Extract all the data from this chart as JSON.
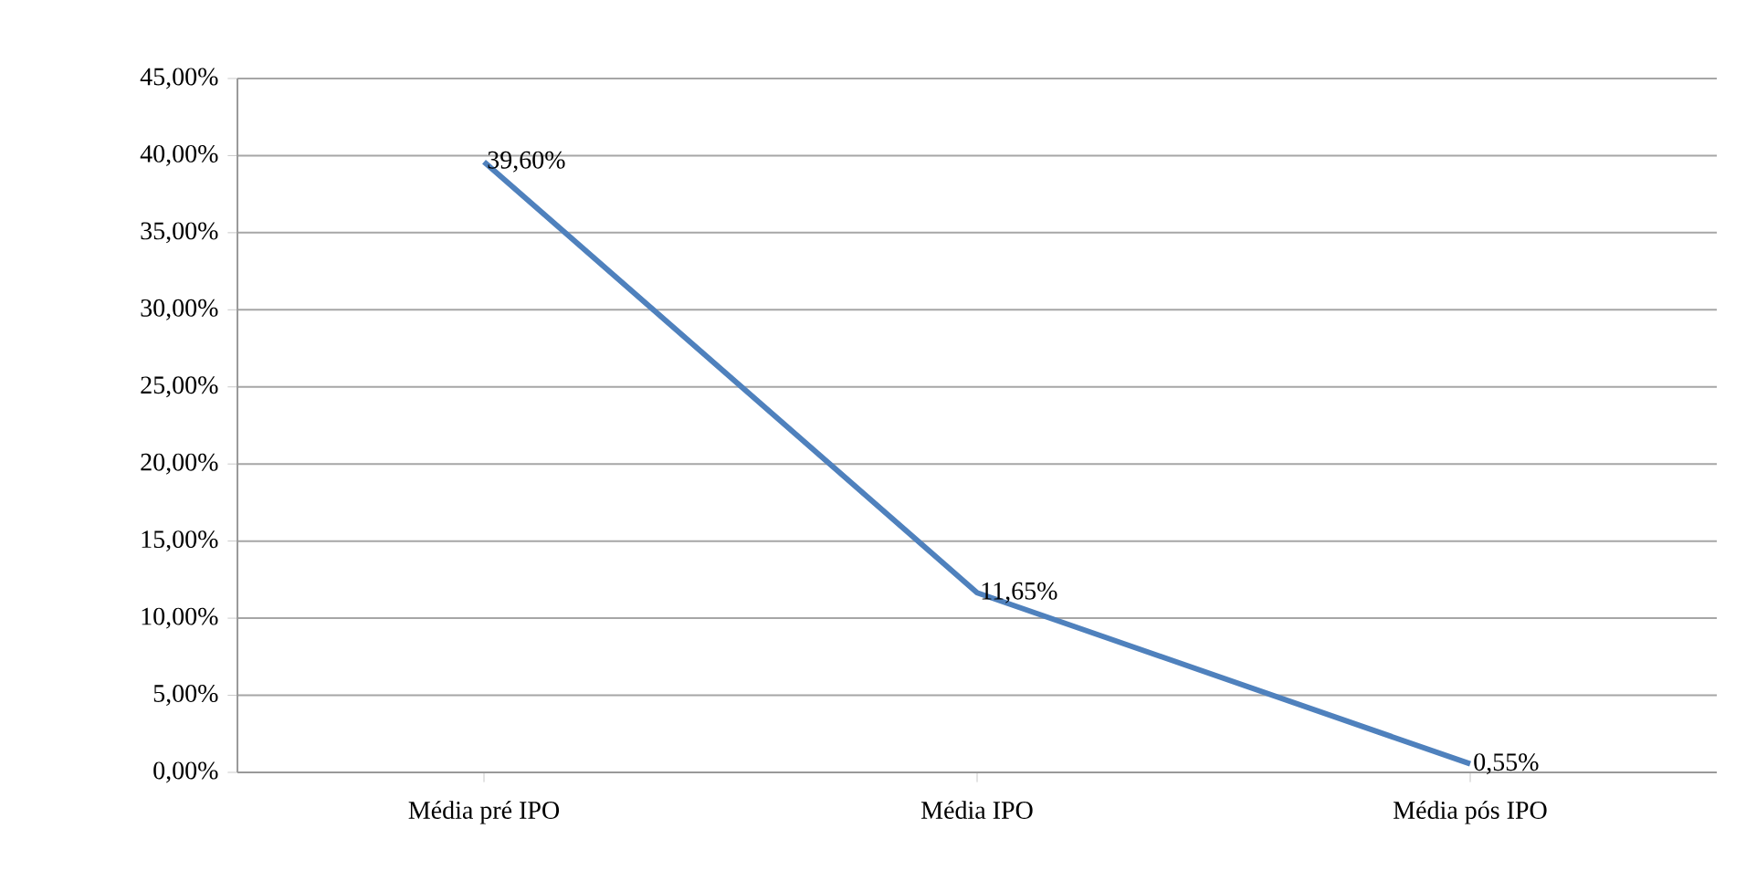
{
  "chart_data": {
    "type": "line",
    "categories": [
      "Média pré IPO",
      "Média IPO",
      "Média pós IPO"
    ],
    "series": [
      {
        "color": "#4f81bd",
        "values": [
          39.6,
          11.65,
          0.55
        ],
        "value_labels": [
          "39,60%",
          "11,65%",
          "0,55%"
        ]
      }
    ],
    "ylim": [
      0,
      45
    ],
    "yticks": [
      {
        "value": 0,
        "label": "0,00%"
      },
      {
        "value": 5,
        "label": "5,00%"
      },
      {
        "value": 10,
        "label": "10,00%"
      },
      {
        "value": 15,
        "label": "15,00%"
      },
      {
        "value": 20,
        "label": "20,00%"
      },
      {
        "value": 25,
        "label": "25,00%"
      },
      {
        "value": 30,
        "label": "30,00%"
      },
      {
        "value": 35,
        "label": "35,00%"
      },
      {
        "value": 40,
        "label": "40,00%"
      },
      {
        "value": 45,
        "label": "45,00%"
      }
    ],
    "grid": "y",
    "marker": "none"
  }
}
